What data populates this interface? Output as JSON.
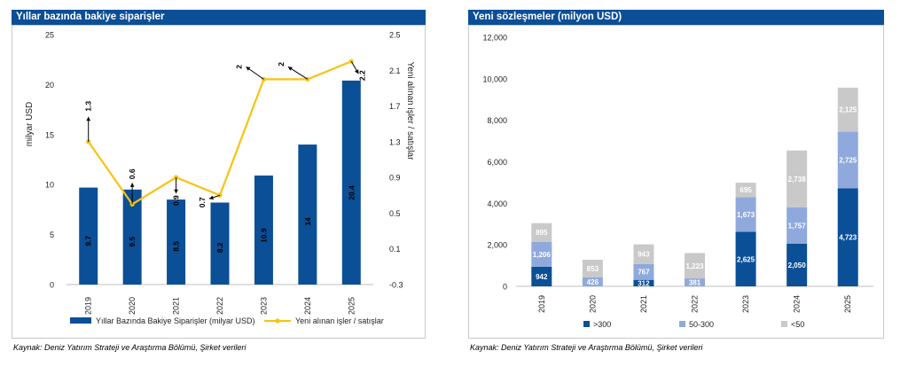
{
  "left_title": "Yıllar bazında bakiye siparişler",
  "right_title": "Yeni sözleşmeler (milyon USD)",
  "left_source": "Kaynak: Deniz Yatırım Strateji ve Araştırma Bölümü, Şirket verileri",
  "right_source": "Kaynak: Deniz Yatırım Strateji ve Araştırma Bölümü, Şirket verileri",
  "chart_data": [
    {
      "type": "bar+line",
      "categories": [
        "2019",
        "2020",
        "2021",
        "2022",
        "2023",
        "2024",
        "2025"
      ],
      "bar_series": {
        "name": "Yıllar Bazında Bakiye Siparişler (milyar USD)",
        "values": [
          9.7,
          9.5,
          8.5,
          8.2,
          10.9,
          14,
          20.4
        ],
        "labels": [
          "9.7",
          "9.5",
          "8.5",
          "8.2",
          "10.9",
          "14",
          "20.4"
        ],
        "color": "#0b4f97"
      },
      "line_series": {
        "name": "Yeni alınan işler / satışlar",
        "values": [
          1.3,
          0.6,
          0.9,
          0.7,
          2,
          2,
          2.2
        ],
        "labels": [
          "1.3",
          "0.6",
          "0.9",
          "0.7",
          "2",
          "2",
          "2.2"
        ],
        "color": "#f7c314"
      },
      "ylabel_left": "milyar USD",
      "ylabel_right": "Yeni alınan işler / satışlar",
      "ylim_left": [
        0,
        25
      ],
      "yticks_left": [
        "0",
        "5",
        "10",
        "15",
        "20",
        "25"
      ],
      "ylim_right": [
        -0.3,
        2.5
      ],
      "yticks_right": [
        "-0.3",
        "0.1",
        "0.5",
        "0.9",
        "1.3",
        "1.7",
        "2.1",
        "2.5"
      ]
    },
    {
      "type": "stacked-bar",
      "categories": [
        "2019",
        "2020",
        "2021",
        "2022",
        "2023",
        "2024",
        "2025"
      ],
      "series": [
        {
          "name": ">300",
          "values": [
            942,
            0,
            312,
            0,
            2625,
            2050,
            4723
          ],
          "labels": [
            "942",
            "",
            "312",
            "",
            "2,625",
            "2,050",
            "4,723"
          ],
          "color": "#0b4f97"
        },
        {
          "name": "50-300",
          "values": [
            1206,
            426,
            767,
            381,
            1673,
            1757,
            2725
          ],
          "labels": [
            "1,206",
            "426",
            "767",
            "381",
            "1,673",
            "1,757",
            "2,725"
          ],
          "color": "#8fa9dc"
        },
        {
          "name": "<50",
          "values": [
            895,
            853,
            943,
            1223,
            695,
            2738,
            2125
          ],
          "labels": [
            "895",
            "853",
            "943",
            "1,223",
            "695",
            "2,738",
            "2,125"
          ],
          "color": "#c9c9c9"
        }
      ],
      "ylim": [
        0,
        12000
      ],
      "yticks": [
        "0",
        "2,000",
        "4,000",
        "6,000",
        "8,000",
        "10,000",
        "12,000"
      ]
    }
  ]
}
